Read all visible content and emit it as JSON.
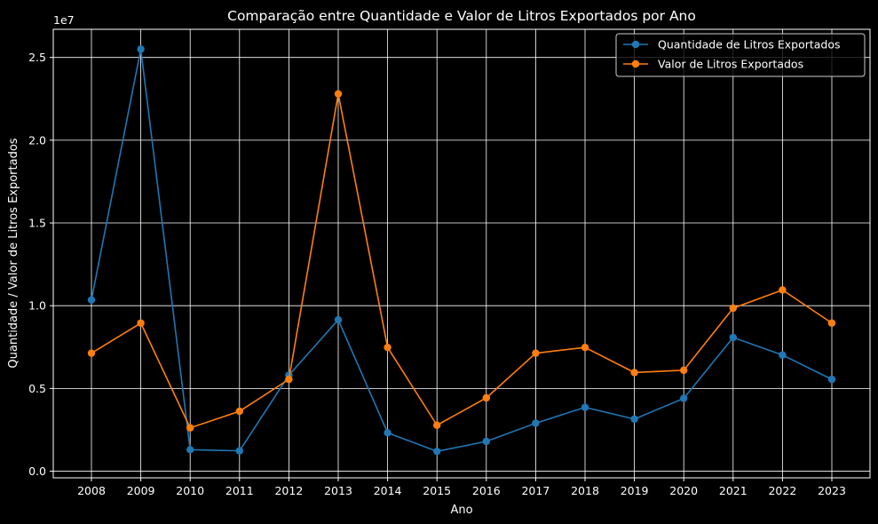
{
  "chart_data": {
    "type": "line",
    "title": "Comparação entre Quantidade e Valor de Litros Exportados por Ano",
    "xlabel": "Ano",
    "ylabel": "Quantidade / Valor de Litros Exportados",
    "y_offset_label": "1e7",
    "y_scale": 10000000,
    "categories": [
      "2008",
      "2009",
      "2010",
      "2011",
      "2012",
      "2013",
      "2014",
      "2015",
      "2016",
      "2017",
      "2018",
      "2019",
      "2020",
      "2021",
      "2022",
      "2023"
    ],
    "y_ticks": [
      0,
      5000000,
      10000000,
      15000000,
      20000000,
      25000000
    ],
    "y_tick_labels": [
      "0.0",
      "0.5",
      "1.0",
      "1.5",
      "2.0",
      "2.5"
    ],
    "ylim": [
      -400000,
      26700000
    ],
    "grid": true,
    "legend_position": "top-right",
    "series": [
      {
        "name": "Quantidade de Litros Exportados",
        "color": "#1f77b4",
        "values": [
          10350000,
          25500000,
          1300000,
          1230000,
          5800000,
          9150000,
          2320000,
          1200000,
          1800000,
          2900000,
          3860000,
          3150000,
          4400000,
          8080000,
          7020000,
          5550000
        ]
      },
      {
        "name": "Valor de Litros Exportados",
        "color": "#ff7f0e",
        "values": [
          7130000,
          8950000,
          2620000,
          3620000,
          5550000,
          22800000,
          7480000,
          2780000,
          4430000,
          7130000,
          7480000,
          5960000,
          6100000,
          9850000,
          10950000,
          8950000
        ]
      }
    ]
  }
}
